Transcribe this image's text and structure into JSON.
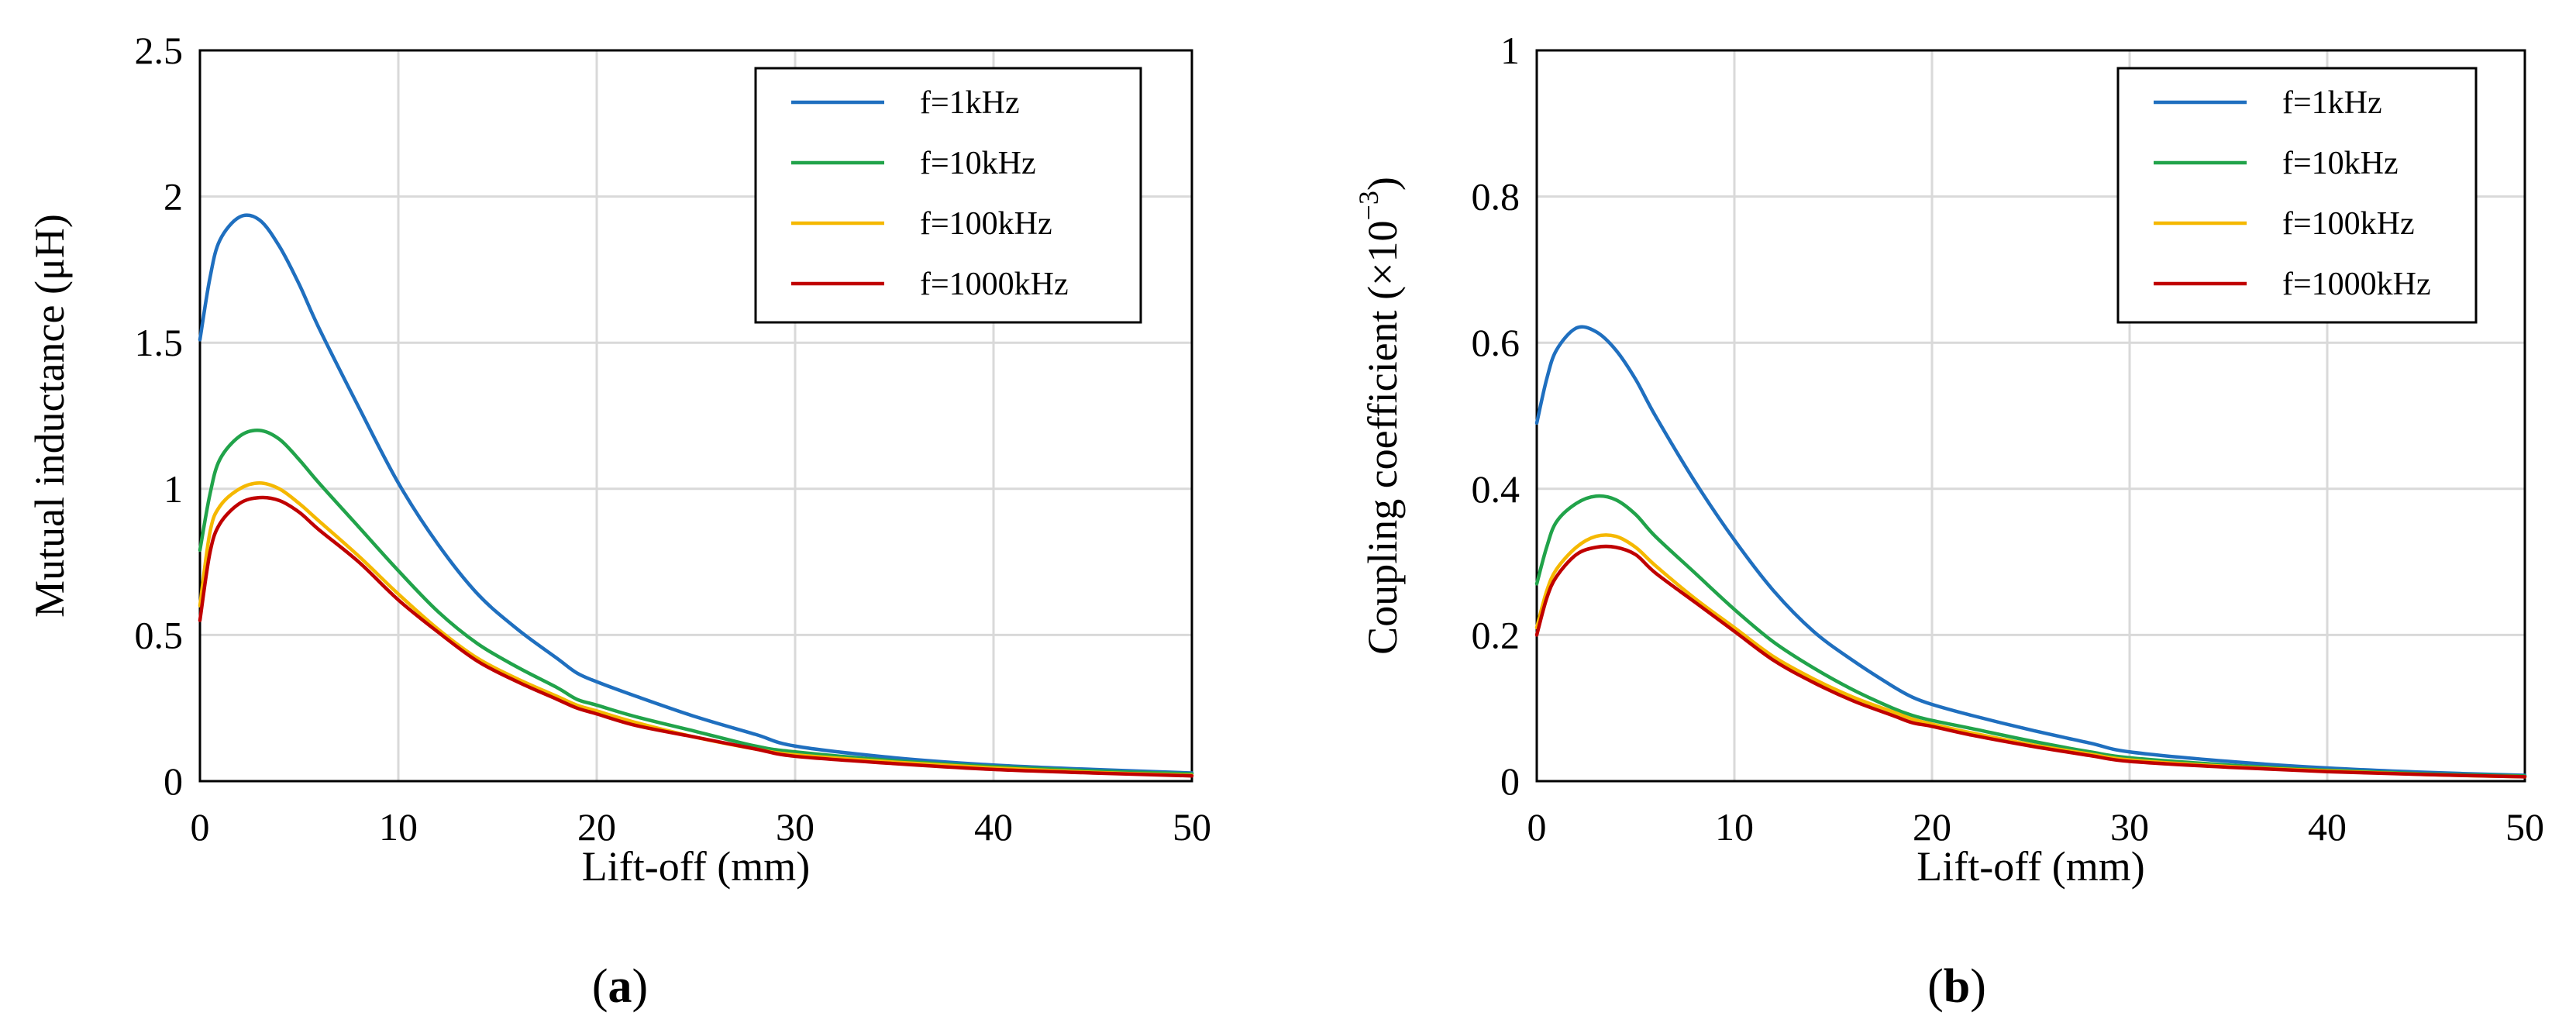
{
  "chart_data": [
    {
      "type": "line",
      "panel_label": {
        "open": "(",
        "letter": "a",
        "close": ")"
      },
      "title": "",
      "xlabel": "Lift-off (mm)",
      "ylabel": "Mutual inductance (μH)",
      "xlim": [
        0,
        50
      ],
      "ylim": [
        0,
        2.5
      ],
      "x_ticks": [
        0,
        10,
        20,
        30,
        40,
        50
      ],
      "y_ticks": [
        0,
        0.5,
        1,
        1.5,
        2,
        2.5
      ],
      "x_tick_labels": [
        "0",
        "10",
        "20",
        "30",
        "40",
        "50"
      ],
      "y_tick_labels": [
        "0",
        "0.5",
        "1",
        "1.5",
        "2",
        "2.5"
      ],
      "grid": true,
      "legend_position": "top-right",
      "x": [
        0,
        0.5,
        1,
        2,
        3,
        4,
        5,
        6,
        8,
        10,
        12,
        14,
        16,
        18,
        19,
        20,
        22,
        25,
        28,
        30,
        35,
        40,
        45,
        50
      ],
      "series": [
        {
          "name": "f=1kHz",
          "color": "#1f6fbf",
          "values": [
            1.51,
            1.72,
            1.85,
            1.93,
            1.92,
            1.83,
            1.7,
            1.55,
            1.28,
            1.02,
            0.81,
            0.64,
            0.52,
            0.42,
            0.37,
            0.34,
            0.29,
            0.22,
            0.16,
            0.12,
            0.08,
            0.055,
            0.04,
            0.028
          ]
        },
        {
          "name": "f=10kHz",
          "color": "#21a34a",
          "values": [
            0.79,
            0.98,
            1.1,
            1.18,
            1.2,
            1.17,
            1.1,
            1.02,
            0.87,
            0.72,
            0.58,
            0.47,
            0.39,
            0.32,
            0.28,
            0.26,
            0.22,
            0.17,
            0.12,
            0.1,
            0.07,
            0.05,
            0.035,
            0.025
          ]
        },
        {
          "name": "f=100kHz",
          "color": "#f5b800",
          "values": [
            0.6,
            0.85,
            0.94,
            1.0,
            1.02,
            1.0,
            0.95,
            0.89,
            0.77,
            0.64,
            0.52,
            0.42,
            0.35,
            0.29,
            0.26,
            0.24,
            0.2,
            0.15,
            0.11,
            0.09,
            0.065,
            0.045,
            0.03,
            0.02
          ]
        },
        {
          "name": "f=1000kHz",
          "color": "#c00000",
          "values": [
            0.55,
            0.78,
            0.88,
            0.95,
            0.97,
            0.96,
            0.92,
            0.86,
            0.75,
            0.62,
            0.51,
            0.41,
            0.34,
            0.28,
            0.25,
            0.23,
            0.19,
            0.15,
            0.11,
            0.085,
            0.06,
            0.04,
            0.028,
            0.018
          ]
        }
      ]
    },
    {
      "type": "line",
      "panel_label": {
        "open": "(",
        "letter": "b",
        "close": ")"
      },
      "title": "",
      "xlabel": "Lift-off (mm)",
      "ylabel": "Coupling coefficient (×10",
      "ylabel_exponent": "−3",
      "ylabel_close": ")",
      "xlim": [
        0,
        50
      ],
      "ylim": [
        0,
        1
      ],
      "x_ticks": [
        0,
        10,
        20,
        30,
        40,
        50
      ],
      "y_ticks": [
        0,
        0.2,
        0.4,
        0.6,
        0.8,
        1
      ],
      "x_tick_labels": [
        "0",
        "10",
        "20",
        "30",
        "40",
        "50"
      ],
      "y_tick_labels": [
        "0",
        "0.2",
        "0.4",
        "0.6",
        "0.8",
        "1"
      ],
      "grid": true,
      "legend_position": "top-right",
      "x": [
        0,
        0.5,
        1,
        2,
        3,
        4,
        5,
        6,
        8,
        10,
        12,
        14,
        16,
        18,
        19,
        20,
        22,
        25,
        28,
        30,
        35,
        40,
        45,
        50
      ],
      "series": [
        {
          "name": "f=1kHz",
          "color": "#1f6fbf",
          "values": [
            0.49,
            0.55,
            0.59,
            0.62,
            0.615,
            0.59,
            0.55,
            0.5,
            0.41,
            0.33,
            0.26,
            0.205,
            0.165,
            0.13,
            0.115,
            0.105,
            0.09,
            0.07,
            0.052,
            0.04,
            0.027,
            0.018,
            0.012,
            0.008
          ]
        },
        {
          "name": "f=10kHz",
          "color": "#21a34a",
          "values": [
            0.27,
            0.32,
            0.355,
            0.38,
            0.39,
            0.385,
            0.365,
            0.335,
            0.285,
            0.235,
            0.19,
            0.155,
            0.125,
            0.1,
            0.09,
            0.083,
            0.072,
            0.055,
            0.04,
            0.032,
            0.022,
            0.015,
            0.01,
            0.007
          ]
        },
        {
          "name": "f=100kHz",
          "color": "#f5b800",
          "values": [
            0.21,
            0.26,
            0.29,
            0.32,
            0.335,
            0.335,
            0.32,
            0.295,
            0.25,
            0.21,
            0.17,
            0.14,
            0.115,
            0.095,
            0.085,
            0.078,
            0.066,
            0.05,
            0.037,
            0.029,
            0.02,
            0.014,
            0.009,
            0.006
          ]
        },
        {
          "name": "f=1000kHz",
          "color": "#c00000",
          "values": [
            0.2,
            0.25,
            0.28,
            0.31,
            0.32,
            0.32,
            0.31,
            0.285,
            0.245,
            0.205,
            0.165,
            0.135,
            0.11,
            0.09,
            0.08,
            0.075,
            0.063,
            0.048,
            0.035,
            0.027,
            0.019,
            0.013,
            0.009,
            0.006
          ]
        }
      ]
    }
  ]
}
